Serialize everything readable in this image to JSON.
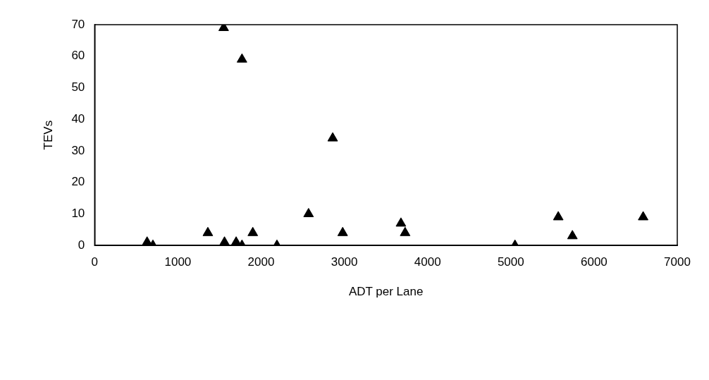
{
  "chart_data": {
    "type": "scatter",
    "xlabel": "ADT per Lane",
    "ylabel": "TEVs",
    "series": [
      {
        "color": "#000000",
        "x": [
          630,
          700,
          1360,
          1560,
          1700,
          1770,
          1900,
          2190,
          2570,
          2860,
          2980,
          3680,
          3730,
          5050,
          5570,
          5740,
          6590,
          1550,
          1770
        ],
        "values": [
          1,
          0,
          4,
          1,
          1,
          0,
          4,
          0,
          10,
          34,
          4,
          7,
          4,
          0,
          9,
          3,
          9,
          69,
          59
        ]
      }
    ],
    "xlim": [
      0,
      7000
    ],
    "xticks": [
      0,
      1000,
      2000,
      3000,
      4000,
      5000,
      6000,
      7000
    ],
    "ylim": [
      0,
      70
    ],
    "yticks": [
      0,
      10,
      20,
      30,
      40,
      50,
      60,
      70
    ],
    "grid": false,
    "legend": false,
    "marker": "triangle"
  }
}
